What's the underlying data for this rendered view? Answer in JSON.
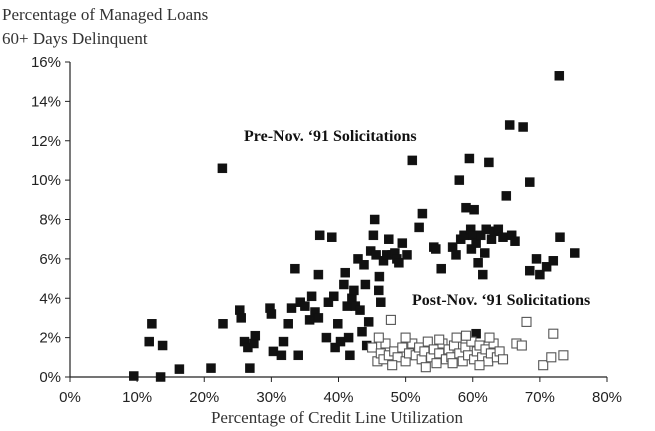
{
  "chart_data": {
    "type": "scatter",
    "ylabel_line1": "Percentage of Managed Loans",
    "ylabel_line2": "60+ Days Delinquent",
    "xlabel": "Percentage of Credit Line Utilization",
    "xlim": [
      0,
      80
    ],
    "ylim": [
      0,
      16
    ],
    "x_ticks": [
      "0%",
      "10%",
      "20%",
      "30%",
      "40%",
      "50%",
      "60%",
      "70%",
      "80%"
    ],
    "y_ticks": [
      "0%",
      "2%",
      "4%",
      "6%",
      "8%",
      "10%",
      "12%",
      "14%",
      "16%"
    ],
    "grid": false,
    "annotations": [
      "Pre-Nov. ‘91 Solicitations",
      "Post-Nov. ‘91 Solicitations"
    ],
    "colors": {
      "pre": "#111111",
      "post": "#ffffff",
      "post_stroke": "#555555"
    },
    "series": [
      {
        "label_ref": 0,
        "marker": "filled-square",
        "points": [
          [
            9.5,
            0.05
          ],
          [
            12.2,
            2.7
          ],
          [
            11.8,
            1.8
          ],
          [
            13.8,
            1.6
          ],
          [
            13.5,
            0.0
          ],
          [
            16.3,
            0.4
          ],
          [
            21.0,
            0.45
          ],
          [
            22.7,
            10.6
          ],
          [
            22.8,
            2.7
          ],
          [
            25.3,
            3.4
          ],
          [
            25.5,
            3.0
          ],
          [
            26.0,
            1.8
          ],
          [
            26.5,
            1.5
          ],
          [
            26.8,
            0.45
          ],
          [
            27.4,
            1.7
          ],
          [
            27.6,
            2.1
          ],
          [
            29.8,
            3.5
          ],
          [
            30.0,
            3.2
          ],
          [
            30.3,
            1.3
          ],
          [
            31.5,
            1.1
          ],
          [
            31.8,
            1.8
          ],
          [
            32.5,
            2.7
          ],
          [
            33.0,
            3.5
          ],
          [
            33.5,
            5.5
          ],
          [
            34.3,
            3.8
          ],
          [
            34.0,
            1.1
          ],
          [
            35.0,
            3.6
          ],
          [
            35.7,
            2.9
          ],
          [
            36.0,
            4.1
          ],
          [
            36.5,
            3.3
          ],
          [
            37.0,
            5.2
          ],
          [
            37.0,
            3.0
          ],
          [
            37.2,
            7.2
          ],
          [
            38.2,
            2.0
          ],
          [
            38.5,
            3.8
          ],
          [
            39.0,
            7.1
          ],
          [
            39.3,
            4.1
          ],
          [
            39.5,
            1.5
          ],
          [
            39.9,
            2.7
          ],
          [
            40.3,
            1.8
          ],
          [
            40.8,
            4.7
          ],
          [
            41.0,
            5.3
          ],
          [
            41.3,
            3.6
          ],
          [
            41.5,
            2.0
          ],
          [
            41.7,
            1.1
          ],
          [
            42.0,
            4.0
          ],
          [
            42.3,
            4.4
          ],
          [
            42.5,
            3.6
          ],
          [
            42.9,
            6.0
          ],
          [
            43.2,
            3.4
          ],
          [
            43.5,
            2.3
          ],
          [
            43.8,
            5.7
          ],
          [
            44.0,
            4.7
          ],
          [
            44.2,
            1.6
          ],
          [
            44.5,
            2.8
          ],
          [
            44.8,
            6.4
          ],
          [
            45.2,
            7.2
          ],
          [
            45.4,
            8.0
          ],
          [
            45.6,
            6.2
          ],
          [
            46.0,
            4.4
          ],
          [
            46.1,
            5.1
          ],
          [
            46.3,
            3.8
          ],
          [
            46.7,
            5.9
          ],
          [
            47.2,
            6.2
          ],
          [
            47.5,
            7.0
          ],
          [
            48.0,
            6.2
          ],
          [
            48.4,
            6.3
          ],
          [
            48.7,
            6.0
          ],
          [
            49.5,
            6.8
          ],
          [
            49.0,
            5.8
          ],
          [
            50.2,
            6.2
          ],
          [
            51.0,
            11.0
          ],
          [
            52.0,
            7.6
          ],
          [
            52.5,
            8.3
          ],
          [
            54.2,
            6.6
          ],
          [
            54.5,
            6.5
          ],
          [
            55.3,
            5.5
          ],
          [
            57.0,
            6.6
          ],
          [
            57.5,
            6.2
          ],
          [
            58.2,
            7.0
          ],
          [
            58.0,
            10.0
          ],
          [
            58.7,
            7.2
          ],
          [
            59.0,
            8.6
          ],
          [
            59.5,
            11.1
          ],
          [
            59.7,
            7.5
          ],
          [
            59.8,
            6.5
          ],
          [
            60.0,
            7.2
          ],
          [
            60.2,
            8.5
          ],
          [
            60.5,
            6.8
          ],
          [
            60.5,
            2.2
          ],
          [
            60.8,
            5.8
          ],
          [
            61.2,
            7.2
          ],
          [
            61.5,
            5.2
          ],
          [
            61.8,
            6.3
          ],
          [
            62.0,
            7.5
          ],
          [
            62.4,
            10.9
          ],
          [
            62.8,
            7.0
          ],
          [
            63.2,
            7.4
          ],
          [
            63.8,
            7.5
          ],
          [
            64.5,
            7.1
          ],
          [
            65.0,
            9.2
          ],
          [
            65.5,
            12.8
          ],
          [
            65.8,
            7.2
          ],
          [
            66.3,
            6.9
          ],
          [
            67.5,
            12.7
          ],
          [
            68.5,
            9.9
          ],
          [
            68.5,
            5.4
          ],
          [
            69.5,
            6.0
          ],
          [
            70.0,
            5.2
          ],
          [
            71.0,
            5.6
          ],
          [
            72.0,
            5.9
          ],
          [
            72.9,
            15.3
          ],
          [
            73.0,
            7.1
          ],
          [
            75.2,
            6.3
          ]
        ]
      },
      {
        "label_ref": 1,
        "marker": "open-square",
        "points": [
          [
            45.0,
            1.5
          ],
          [
            45.8,
            0.8
          ],
          [
            46.3,
            1.2
          ],
          [
            46.7,
            0.9
          ],
          [
            47.0,
            1.7
          ],
          [
            47.5,
            1.1
          ],
          [
            47.8,
            2.9
          ],
          [
            48.3,
            1.3
          ],
          [
            48.8,
            1.0
          ],
          [
            49.5,
            1.5
          ],
          [
            50.0,
            0.8
          ],
          [
            50.5,
            1.2
          ],
          [
            51.0,
            1.7
          ],
          [
            51.5,
            1.1
          ],
          [
            52.0,
            1.5
          ],
          [
            52.4,
            0.9
          ],
          [
            52.8,
            1.3
          ],
          [
            53.3,
            1.8
          ],
          [
            53.8,
            1.0
          ],
          [
            54.2,
            1.4
          ],
          [
            54.6,
            0.7
          ],
          [
            55.0,
            1.2
          ],
          [
            55.5,
            1.7
          ],
          [
            56.0,
            0.9
          ],
          [
            56.4,
            1.4
          ],
          [
            56.8,
            1.0
          ],
          [
            57.2,
            1.6
          ],
          [
            57.6,
            2.0
          ],
          [
            58.0,
            1.2
          ],
          [
            58.5,
            0.8
          ],
          [
            58.9,
            1.5
          ],
          [
            59.3,
            1.1
          ],
          [
            59.8,
            1.8
          ],
          [
            60.2,
            0.9
          ],
          [
            60.6,
            1.3
          ],
          [
            61.0,
            1.6
          ],
          [
            61.4,
            1.0
          ],
          [
            61.9,
            1.4
          ],
          [
            62.3,
            0.8
          ],
          [
            62.7,
            1.2
          ],
          [
            63.1,
            1.7
          ],
          [
            63.6,
            1.0
          ],
          [
            64.0,
            1.3
          ],
          [
            64.5,
            0.9
          ],
          [
            66.5,
            1.7
          ],
          [
            67.3,
            1.6
          ],
          [
            68.0,
            2.8
          ],
          [
            70.5,
            0.6
          ],
          [
            71.7,
            1.0
          ],
          [
            73.5,
            1.1
          ],
          [
            72.0,
            2.2
          ],
          [
            55.0,
            1.9
          ],
          [
            59.0,
            2.1
          ],
          [
            48.0,
            0.6
          ],
          [
            53.0,
            0.5
          ],
          [
            57.0,
            0.7
          ],
          [
            61.0,
            0.6
          ],
          [
            46.0,
            2.0
          ],
          [
            50.0,
            2.0
          ],
          [
            62.5,
            2.0
          ]
        ]
      }
    ]
  }
}
